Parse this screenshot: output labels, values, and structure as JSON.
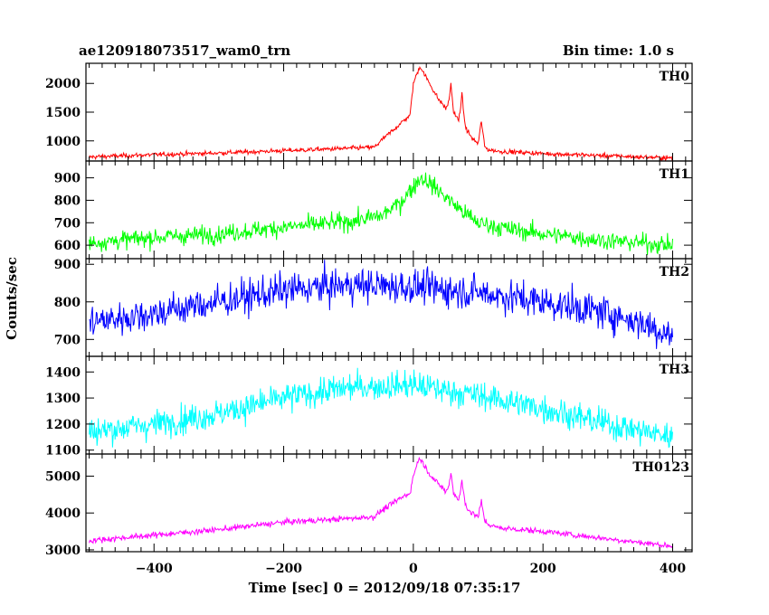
{
  "title_left": "ae120918073517_wam0_trn",
  "title_right": "Bin time: 1.0 s",
  "xlabel": "Time [sec] 0 = 2012/09/18 07:35:17",
  "ylabel": "Counts/sec",
  "chart_data": {
    "type": "line",
    "x_range": [
      -505,
      430
    ],
    "x_ticks": [
      -400,
      -200,
      0,
      200,
      400
    ],
    "bin_time_s": 1.0,
    "grid": false,
    "panels": [
      {
        "name": "TH0",
        "color": "#ff0000",
        "ylim": [
          650,
          2350
        ],
        "y_ticks": [
          1000,
          1500,
          2000
        ],
        "profile": {
          "x": [
            -500,
            -400,
            -300,
            -200,
            -100,
            -60,
            -50,
            -20,
            -5,
            0,
            5,
            10,
            15,
            20,
            30,
            40,
            45,
            50,
            55,
            58,
            62,
            70,
            75,
            80,
            85,
            90,
            95,
            100,
            105,
            110,
            115,
            130,
            200,
            300,
            400
          ],
          "y": [
            720,
            760,
            790,
            830,
            870,
            890,
            1000,
            1300,
            1450,
            2000,
            2150,
            2300,
            2200,
            2100,
            1900,
            1700,
            1650,
            1550,
            1700,
            2000,
            1500,
            1350,
            1800,
            1250,
            1150,
            1050,
            1000,
            950,
            1350,
            900,
            850,
            820,
            780,
            740,
            700
          ]
        },
        "noise_sd": 28
      },
      {
        "name": "TH1",
        "color": "#00ff00",
        "ylim": [
          540,
          975
        ],
        "y_ticks": [
          600,
          700,
          800,
          900
        ],
        "profile": {
          "x": [
            -500,
            -400,
            -300,
            -200,
            -100,
            -50,
            -20,
            0,
            10,
            20,
            40,
            60,
            80,
            100,
            150,
            200,
            300,
            400
          ],
          "y": [
            610,
            635,
            650,
            680,
            705,
            730,
            790,
            860,
            900,
            890,
            840,
            790,
            740,
            700,
            670,
            650,
            620,
            600
          ]
        },
        "noise_sd": 28
      },
      {
        "name": "TH2",
        "color": "#0000ff",
        "ylim": [
          655,
          915
        ],
        "y_ticks": [
          700,
          800,
          900
        ],
        "profile": {
          "x": [
            -500,
            -400,
            -300,
            -200,
            -100,
            0,
            100,
            200,
            300,
            350,
            400
          ],
          "y": [
            745,
            770,
            800,
            830,
            845,
            840,
            825,
            800,
            770,
            745,
            710
          ]
        },
        "noise_sd": 32
      },
      {
        "name": "TH3",
        "color": "#00ffff",
        "ylim": [
          1085,
          1460
        ],
        "y_ticks": [
          1100,
          1200,
          1300,
          1400
        ],
        "profile": {
          "x": [
            -500,
            -400,
            -300,
            -200,
            -100,
            0,
            100,
            200,
            300,
            400
          ],
          "y": [
            1170,
            1200,
            1240,
            1300,
            1340,
            1350,
            1310,
            1260,
            1200,
            1150
          ]
        },
        "noise_sd": 38
      },
      {
        "name": "TH0123",
        "color": "#ff00ff",
        "ylim": [
          2950,
          5600
        ],
        "y_ticks": [
          3000,
          4000,
          5000
        ],
        "profile": {
          "x": [
            -500,
            -400,
            -300,
            -200,
            -100,
            -60,
            -50,
            -20,
            -5,
            0,
            5,
            10,
            15,
            20,
            30,
            40,
            45,
            50,
            55,
            58,
            62,
            70,
            75,
            80,
            85,
            90,
            95,
            100,
            105,
            110,
            115,
            130,
            200,
            300,
            400
          ],
          "y": [
            3250,
            3400,
            3550,
            3750,
            3850,
            3900,
            4050,
            4400,
            4550,
            5000,
            5300,
            5500,
            5350,
            5200,
            4950,
            4750,
            4700,
            4550,
            4750,
            5100,
            4550,
            4350,
            4850,
            4250,
            4100,
            4000,
            3950,
            3900,
            4300,
            3800,
            3700,
            3600,
            3500,
            3300,
            3100
          ]
        },
        "noise_sd": 55
      }
    ]
  }
}
